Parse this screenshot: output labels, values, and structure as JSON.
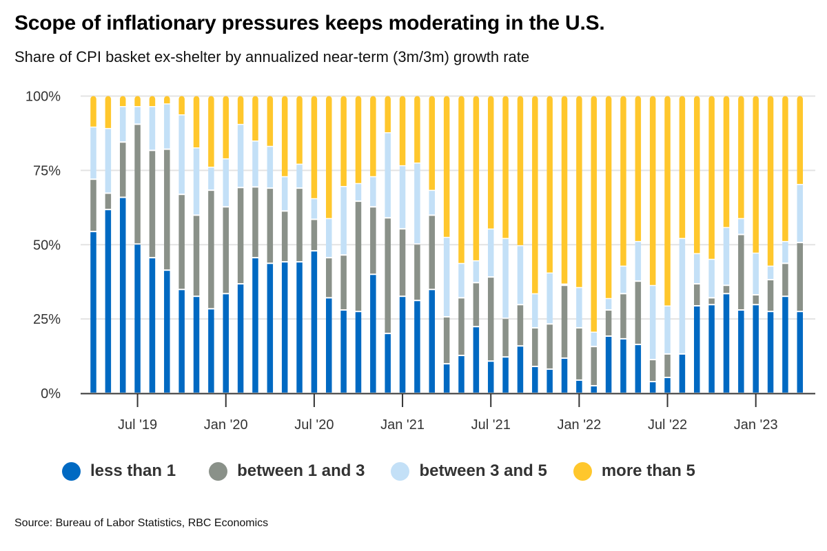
{
  "title": "Scope of inflationary pressures keeps moderating in the U.S.",
  "subtitle": "Share of CPI basket ex-shelter by annualized near-term (3m/3m) growth rate",
  "source": "Source: Bureau of Labor Statistics, RBC Economics",
  "colors": {
    "less_than_1": "#0069C2",
    "between_1_and_3": "#8A9189",
    "between_3_and_5": "#C3E0F7",
    "more_than_5": "#FFC72C"
  },
  "chart_data": {
    "type": "bar",
    "stacked": true,
    "title": "Scope of inflationary pressures keeps moderating in the U.S.",
    "subtitle": "Share of CPI basket ex-shelter by annualized near-term (3m/3m) growth rate",
    "xlabel": "",
    "ylabel": "",
    "ylim": [
      0,
      100
    ],
    "yticks": [
      0,
      25,
      50,
      75,
      100
    ],
    "ytick_labels": [
      "0%",
      "25%",
      "50%",
      "75%",
      "100%"
    ],
    "grid": true,
    "legend_position": "bottom",
    "x_start": "Apr 2019",
    "x_end": "Apr 2023",
    "xtick_labels": [
      {
        "label": "Jul '19",
        "index": 3
      },
      {
        "label": "Jan '20",
        "index": 9
      },
      {
        "label": "Jul '20",
        "index": 15
      },
      {
        "label": "Jan '21",
        "index": 21
      },
      {
        "label": "Jul '21",
        "index": 27
      },
      {
        "label": "Jan '22",
        "index": 33
      },
      {
        "label": "Jul '22",
        "index": 39
      },
      {
        "label": "Jan '23",
        "index": 45
      }
    ],
    "categories": [
      "Apr 2019",
      "May 2019",
      "Jun 2019",
      "Jul 2019",
      "Aug 2019",
      "Sep 2019",
      "Oct 2019",
      "Nov 2019",
      "Dec 2019",
      "Jan 2020",
      "Feb 2020",
      "Mar 2020",
      "Apr 2020",
      "May 2020",
      "Jun 2020",
      "Jul 2020",
      "Aug 2020",
      "Sep 2020",
      "Oct 2020",
      "Nov 2020",
      "Dec 2020",
      "Jan 2021",
      "Feb 2021",
      "Mar 2021",
      "Apr 2021",
      "May 2021",
      "Jun 2021",
      "Jul 2021",
      "Aug 2021",
      "Sep 2021",
      "Oct 2021",
      "Nov 2021",
      "Dec 2021",
      "Jan 2022",
      "Feb 2022",
      "Mar 2022",
      "Apr 2022",
      "May 2022",
      "Jun 2022",
      "Jul 2022",
      "Aug 2022",
      "Sep 2022",
      "Oct 2022",
      "Nov 2022",
      "Dec 2022",
      "Jan 2023",
      "Feb 2023",
      "Mar 2023",
      "Apr 2023"
    ],
    "series": [
      {
        "name": "less than 1",
        "key": "less_than_1",
        "values": [
          54.2,
          61.6,
          65.7,
          50.0,
          45.4,
          41.2,
          34.7,
          32.4,
          28.2,
          33.3,
          36.6,
          45.4,
          43.5,
          44.0,
          44.0,
          47.7,
          31.9,
          27.8,
          27.3,
          39.8,
          19.9,
          32.4,
          31.0,
          34.7,
          9.7,
          12.5,
          22.2,
          10.6,
          12.0,
          15.7,
          8.8,
          7.9,
          11.6,
          4.2,
          2.3,
          19.0,
          18.1,
          16.2,
          3.7,
          5.1,
          13.0,
          29.2,
          29.6,
          33.3,
          27.8,
          29.6,
          27.3,
          32.4,
          27.3
        ]
      },
      {
        "name": "between 1 and 3",
        "key": "between_1_and_3",
        "values": [
          17.6,
          5.5,
          18.6,
          40.3,
          36.1,
          40.7,
          32.0,
          27.3,
          39.9,
          29.2,
          32.4,
          23.8,
          25.3,
          17.1,
          24.8,
          10.6,
          13.5,
          18.5,
          37.1,
          22.7,
          38.9,
          22.7,
          19.0,
          25.0,
          15.8,
          19.4,
          14.8,
          28.3,
          13.0,
          13.9,
          13.0,
          15.2,
          24.5,
          17.6,
          13.2,
          8.8,
          15.2,
          21.3,
          7.4,
          7.9,
          0.0,
          7.4,
          2.3,
          2.8,
          25.4,
          3.3,
          10.7,
          11.1,
          23.2
        ]
      },
      {
        "name": "between 3 and 5",
        "key": "between_3_and_5",
        "values": [
          17.6,
          21.8,
          12.0,
          6.0,
          14.8,
          15.3,
          26.8,
          22.7,
          7.8,
          16.2,
          21.3,
          15.5,
          14.1,
          11.6,
          8.1,
          7.0,
          13.2,
          23.1,
          6.0,
          10.2,
          28.7,
          21.3,
          27.3,
          8.4,
          26.8,
          11.6,
          7.4,
          16.2,
          26.9,
          19.9,
          11.5,
          17.2,
          0.5,
          13.6,
          4.9,
          3.9,
          9.3,
          13.4,
          25.0,
          16.2,
          38.9,
          10.2,
          13.0,
          19.5,
          5.4,
          14.1,
          4.6,
          7.4,
          19.6
        ]
      },
      {
        "name": "more than 5",
        "key": "more_than_5",
        "values": [
          10.6,
          11.1,
          3.7,
          3.7,
          3.7,
          2.8,
          6.5,
          17.6,
          24.1,
          21.3,
          9.7,
          15.3,
          17.1,
          27.3,
          23.1,
          34.7,
          41.4,
          30.6,
          29.6,
          27.3,
          12.5,
          23.6,
          22.7,
          31.9,
          47.7,
          56.5,
          55.6,
          44.9,
          48.1,
          50.5,
          66.7,
          59.7,
          63.4,
          64.6,
          79.6,
          68.3,
          57.4,
          49.1,
          63.9,
          70.8,
          48.1,
          53.2,
          55.1,
          44.4,
          41.4,
          53.0,
          57.4,
          49.1,
          29.9
        ]
      }
    ]
  },
  "legend": [
    {
      "label": "less than 1",
      "key": "less_than_1"
    },
    {
      "label": "between 1 and 3",
      "key": "between_1_and_3"
    },
    {
      "label": "between 3 and 5",
      "key": "between_3_and_5"
    },
    {
      "label": "more than 5",
      "key": "more_than_5"
    }
  ]
}
